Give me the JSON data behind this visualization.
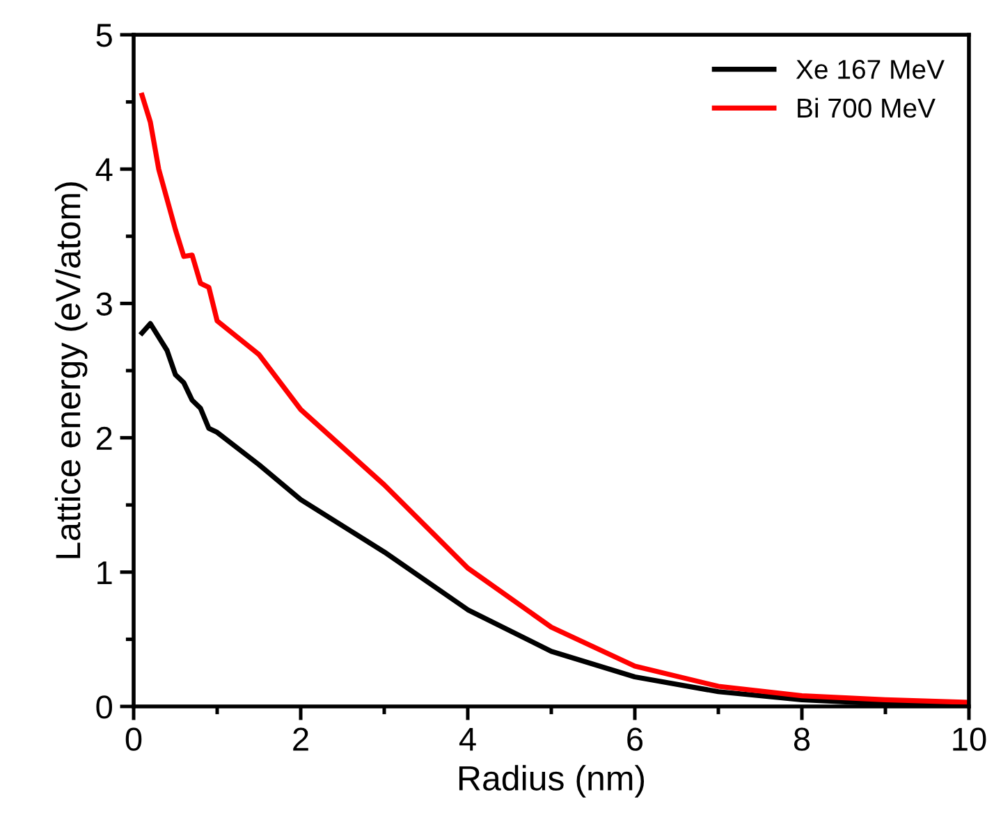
{
  "chart_data": {
    "type": "line",
    "xlabel": "Radius (nm)",
    "ylabel": "Lattice energy (eV/atom)",
    "xlim": [
      0,
      10
    ],
    "xticks": [
      0,
      2,
      4,
      6,
      8,
      10
    ],
    "ylim": [
      0,
      5
    ],
    "yticks": [
      0,
      1,
      2,
      3,
      4,
      5
    ],
    "grid": false,
    "legend": "top right",
    "marker": "none",
    "line_style": "solid",
    "series": [
      {
        "name": "Xe 167 MeV",
        "color": "#000000",
        "x": [
          0.1,
          0.2,
          0.4,
          0.5,
          0.6,
          0.7,
          0.8,
          0.9,
          1.0,
          1.5,
          2,
          3,
          4,
          5,
          6,
          7,
          8,
          9,
          10
        ],
        "values": [
          2.78,
          2.85,
          2.65,
          2.47,
          2.41,
          2.28,
          2.22,
          2.07,
          2.04,
          1.8,
          1.54,
          1.15,
          0.72,
          0.41,
          0.22,
          0.11,
          0.05,
          0.02,
          0.01
        ]
      },
      {
        "name": "Bi 700 MeV",
        "color": "#ff0000",
        "x": [
          0.1,
          0.2,
          0.3,
          0.5,
          0.6,
          0.7,
          0.8,
          0.9,
          1.0,
          1.5,
          2,
          3,
          4,
          5,
          6,
          7,
          8,
          9,
          10
        ],
        "values": [
          4.55,
          4.35,
          4.0,
          3.55,
          3.35,
          3.36,
          3.15,
          3.12,
          2.87,
          2.62,
          2.21,
          1.65,
          1.03,
          0.59,
          0.3,
          0.15,
          0.08,
          0.05,
          0.03
        ]
      }
    ]
  }
}
